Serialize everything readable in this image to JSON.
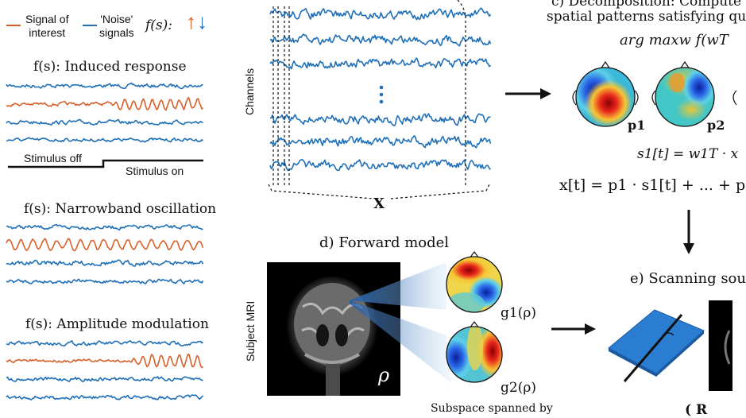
{
  "colors": {
    "signal": "#d8602a",
    "noise": "#1f70b8",
    "ink": "#111111"
  },
  "legend": {
    "signal_label_line1": "Signal of",
    "signal_label_line2": "interest",
    "noise_label_line1": "'Noise'",
    "noise_label_line2": "signals",
    "objective": "f(s):",
    "up_arrow": "↑",
    "down_arrow": "↓"
  },
  "panels": {
    "induced": {
      "title": "f(s): Induced response",
      "stimulus_off": "Stimulus off",
      "stimulus_on": "Stimulus on"
    },
    "narrowband": {
      "title": "f(s): Narrowband oscillation"
    },
    "amplitude": {
      "title": "f(s): Amplitude modulation"
    }
  },
  "data_matrix": {
    "channels_label": "Channels",
    "matrix_label": "X",
    "vdots": "⋮"
  },
  "decomposition": {
    "heading_line1": "c) Decomposition: Compute",
    "heading_line2": "spatial patterns satisfying qu",
    "argmax": "arg maxw f(wT",
    "pattern_labels": [
      "p1",
      "p2"
    ],
    "source_eq": "s1[t] = w1T · x",
    "mixing_eq": "x[t] = p1 · s1[t] + ... + p"
  },
  "forward": {
    "heading": "d) Forward model",
    "mri_label": "Subject MRI",
    "rho": "ρ",
    "gain_labels": [
      "g1(ρ)",
      "g2(ρ)"
    ],
    "subspace_caption": "Subspace spanned by"
  },
  "scanning": {
    "heading": "e) Scanning sou",
    "bottom_eq": "( R"
  }
}
